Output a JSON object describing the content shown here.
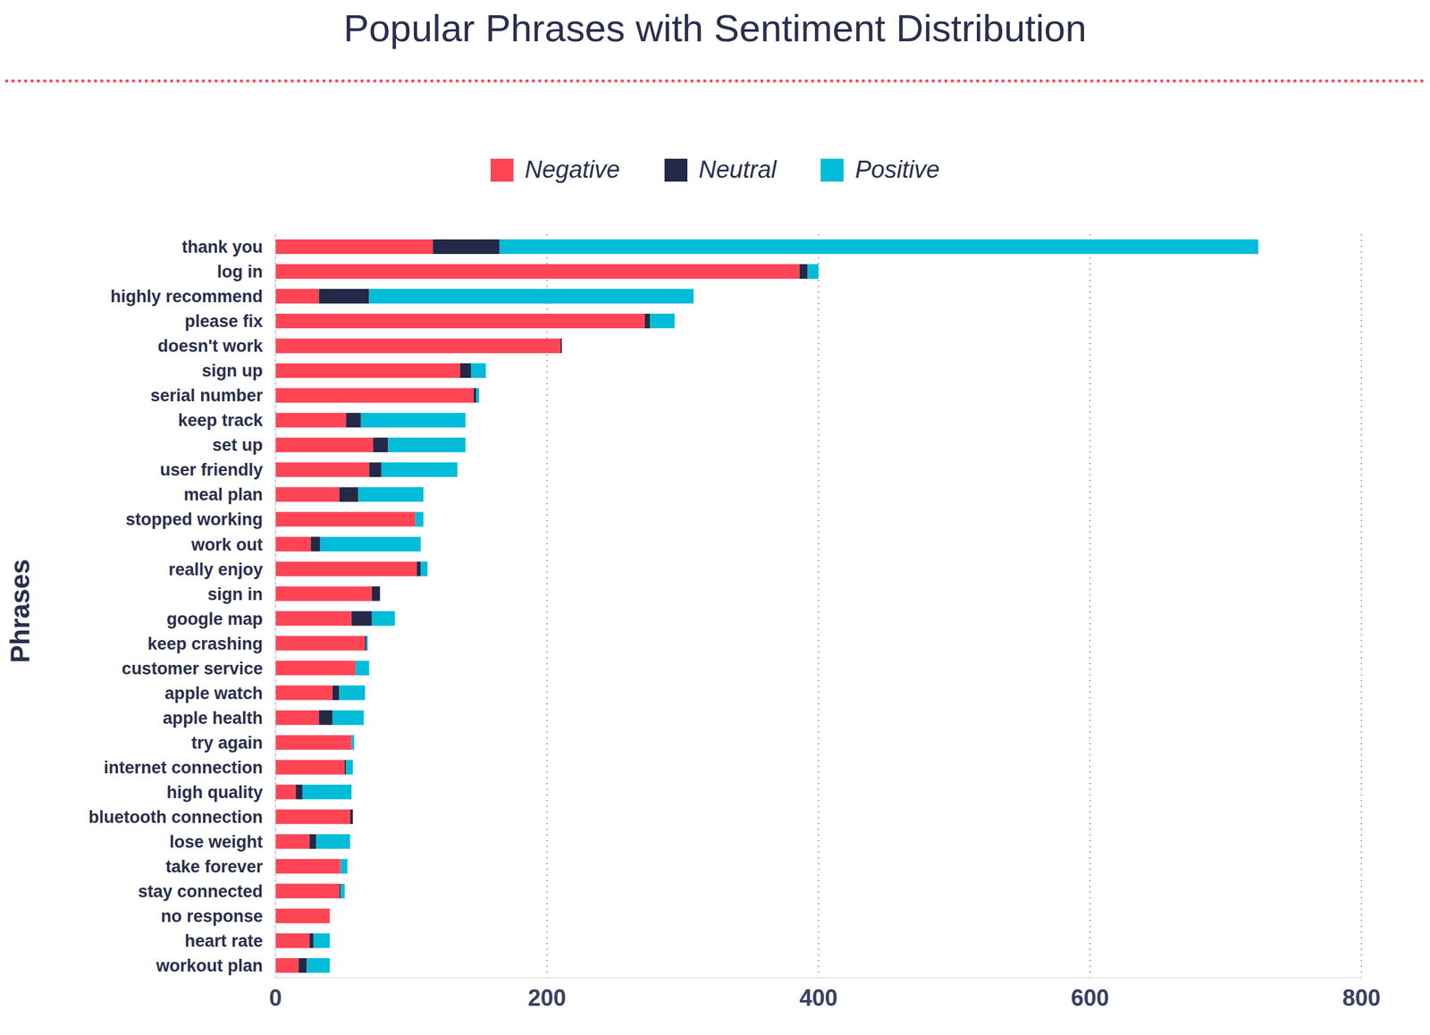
{
  "chart_data": {
    "type": "bar",
    "title": "Popular Phrases with Sentiment Distribution",
    "y_label": "Phrases",
    "orientation": "horizontal",
    "stacked": true,
    "grid": true,
    "legend": "top",
    "xlim": [
      0,
      800
    ],
    "xticks": [
      0,
      200,
      400,
      600,
      800
    ],
    "categories": [
      "thank you",
      "log in",
      "highly recommend",
      "please fix",
      "doesn't work",
      "sign up",
      "serial number",
      "keep track",
      "set up",
      "user friendly",
      "meal plan",
      "stopped working",
      "work out",
      "really enjoy",
      "sign in",
      "google map",
      "keep crashing",
      "customer service",
      "apple watch",
      "apple health",
      "try again",
      "internet connection",
      "high quality",
      "bluetooth connection",
      "lose weight",
      "take forever",
      "stay connected",
      "no response",
      "heart rate",
      "workout plan"
    ],
    "series": [
      {
        "name": "Negative",
        "color": "#ff4555",
        "values": [
          116,
          386,
          32,
          272,
          210,
          136,
          146,
          52,
          72,
          69,
          47,
          103,
          26,
          104,
          71,
          56,
          66,
          59,
          42,
          32,
          56,
          51,
          15,
          55,
          25,
          48,
          47,
          40,
          25,
          17
        ]
      },
      {
        "name": "Neutral",
        "color": "#232946",
        "values": [
          49,
          6,
          37,
          4,
          1,
          8,
          2,
          11,
          11,
          9,
          14,
          0,
          7,
          3,
          6,
          15,
          1,
          0,
          5,
          10,
          0,
          1,
          5,
          2,
          5,
          0,
          1,
          0,
          3,
          6
        ]
      },
      {
        "name": "Positive",
        "color": "#00bcd9",
        "values": [
          559,
          8,
          239,
          18,
          0,
          11,
          2,
          77,
          57,
          56,
          48,
          6,
          74,
          5,
          0,
          17,
          1,
          10,
          19,
          23,
          2,
          5,
          36,
          0,
          25,
          5,
          3,
          0,
          12,
          17
        ]
      }
    ]
  }
}
